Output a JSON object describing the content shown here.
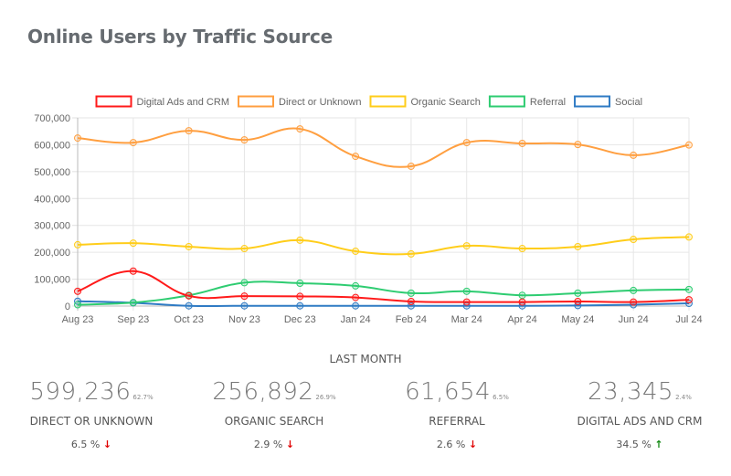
{
  "title": "Online Users by Traffic Source",
  "chart_data": {
    "type": "line",
    "title": "Online Users by Traffic Source",
    "xlabel": "",
    "ylabel": "",
    "ylim": [
      0,
      700000
    ],
    "yticks": [
      0,
      100000,
      200000,
      300000,
      400000,
      500000,
      600000,
      700000
    ],
    "ytick_labels": [
      "0",
      "100,000",
      "200,000",
      "300,000",
      "400,000",
      "500,000",
      "600,000",
      "700,000"
    ],
    "grid": true,
    "legend_position": "top",
    "categories": [
      "Aug 23",
      "Sep 23",
      "Oct 23",
      "Nov 23",
      "Dec 23",
      "Jan 24",
      "Feb 24",
      "Mar 24",
      "Apr 24",
      "May 24",
      "Jun 24",
      "Jul 24"
    ],
    "series": [
      {
        "name": "Digital Ads and CRM",
        "color": "#ff1a1a",
        "values": [
          55000,
          130000,
          38000,
          37000,
          36000,
          32000,
          17000,
          15000,
          15000,
          17000,
          15000,
          23345
        ]
      },
      {
        "name": "Direct or Unknown",
        "color": "#ff9f40",
        "values": [
          625000,
          608000,
          652000,
          618000,
          659000,
          557000,
          520000,
          608000,
          605000,
          601000,
          561000,
          599236
        ]
      },
      {
        "name": "Organic Search",
        "color": "#ffcd1a",
        "values": [
          228000,
          234000,
          221000,
          214000,
          245000,
          204000,
          194000,
          224000,
          214000,
          221000,
          248000,
          256892
        ]
      },
      {
        "name": "Referral",
        "color": "#2ecc71",
        "values": [
          5000,
          13000,
          40000,
          87000,
          85000,
          75000,
          48000,
          55000,
          40000,
          48000,
          58000,
          61654
        ]
      },
      {
        "name": "Social",
        "color": "#2f7bc4",
        "values": [
          18000,
          12000,
          1000,
          1000,
          1000,
          1000,
          1000,
          1000,
          1000,
          2000,
          5000,
          10000
        ]
      }
    ]
  },
  "summary": {
    "label": "LAST MONTH",
    "stats": [
      {
        "value": "599,236",
        "share": "62.7%",
        "name": "DIRECT OR UNKNOWN",
        "change": "6.5 %",
        "direction": "down",
        "arrow": "↓"
      },
      {
        "value": "256,892",
        "share": "26.9%",
        "name": "ORGANIC SEARCH",
        "change": "2.9 %",
        "direction": "down",
        "arrow": "↓"
      },
      {
        "value": "61,654",
        "share": "6.5%",
        "name": "REFERRAL",
        "change": "2.6 %",
        "direction": "down",
        "arrow": "↓"
      },
      {
        "value": "23,345",
        "share": "2.4%",
        "name": "DIGITAL ADS AND CRM",
        "change": "34.5 %",
        "direction": "up",
        "arrow": "↑"
      }
    ]
  }
}
